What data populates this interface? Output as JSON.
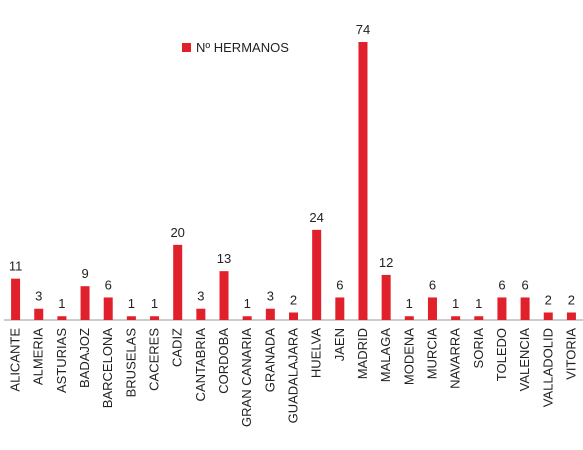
{
  "chart_data": {
    "type": "bar",
    "categories": [
      "ALICANTE",
      "ALMERIA",
      "ASTURIAS",
      "BADAJOZ",
      "BARCELONA",
      "BRUSELAS",
      "CACERES",
      "CADIZ",
      "CANTABRIA",
      "CORDOBA",
      "GRAN CANARIA",
      "GRANADA",
      "GUADALAJARA",
      "HUELVA",
      "JAEN",
      "MADRID",
      "MALAGA",
      "MODENA",
      "MURCIA",
      "NAVARRA",
      "SORIA",
      "TOLEDO",
      "VALENCIA",
      "VALLADOLID",
      "VITORIA"
    ],
    "series": [
      {
        "name": "Nº HERMANOS",
        "color": "#e0202a",
        "values": [
          11,
          3,
          1,
          9,
          6,
          1,
          1,
          20,
          3,
          13,
          1,
          3,
          2,
          24,
          6,
          74,
          12,
          1,
          6,
          1,
          1,
          6,
          6,
          2,
          2
        ]
      }
    ],
    "legend": "top"
  }
}
